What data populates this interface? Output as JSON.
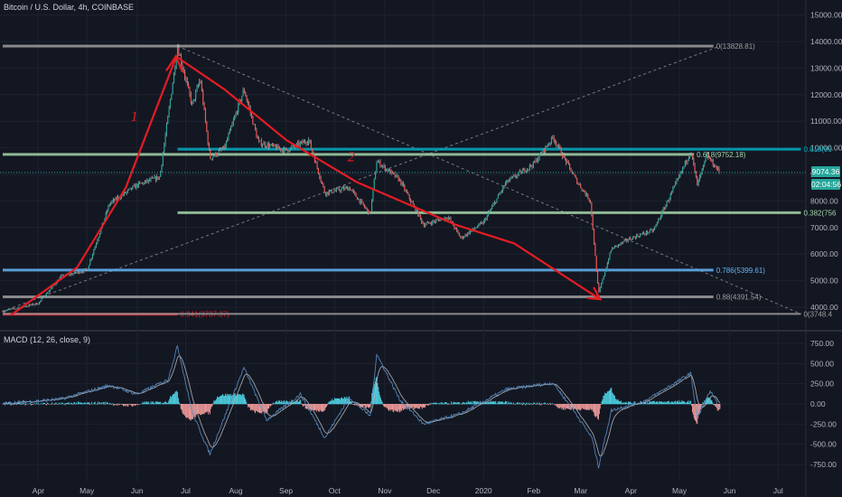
{
  "header": {
    "title": "Bitcoin / U.S. Dollar, 4h, COINBASE"
  },
  "macd_panel": {
    "title": "MACD (12, 26, close, 9)"
  },
  "price_tags": {
    "last_price": "9074.36",
    "countdown": "02:04:56",
    "last_color": "#26a69a"
  },
  "colors": {
    "background": "#131722",
    "grid": "#1e2230",
    "up": "#26a69a",
    "down": "#ef5350",
    "annotation": "#e51c23",
    "macd_line": "#26a69a",
    "signal_line": "#ef5350"
  },
  "chart_data": [
    {
      "type": "line",
      "title": "Bitcoin / U.S. Dollar, 4h, COINBASE",
      "x_tick_labels": [
        "Apr",
        "May",
        "Jun",
        "Jul",
        "Aug",
        "Sep",
        "Oct",
        "Nov",
        "Dec",
        "2020",
        "Feb",
        "Mar",
        "Apr",
        "May",
        "Jun",
        "Jul"
      ],
      "y_tick_labels": [
        "15000.00",
        "14000.00",
        "13000.00",
        "12000.00",
        "11000.00",
        "10000.00",
        "9000.00",
        "8000.00",
        "7000.00",
        "6000.00",
        "5000.00",
        "4000.00"
      ],
      "ylim": [
        3500,
        15200
      ],
      "price_series_approx": [
        {
          "x": "2019-03-10",
          "y": 3850
        },
        {
          "x": "2019-04-01",
          "y": 4150
        },
        {
          "x": "2019-04-15",
          "y": 5150
        },
        {
          "x": "2019-05-01",
          "y": 5400
        },
        {
          "x": "2019-05-15",
          "y": 7900
        },
        {
          "x": "2019-06-01",
          "y": 8600
        },
        {
          "x": "2019-06-15",
          "y": 8900
        },
        {
          "x": "2019-06-26",
          "y": 13800
        },
        {
          "x": "2019-07-05",
          "y": 11600
        },
        {
          "x": "2019-07-10",
          "y": 12600
        },
        {
          "x": "2019-07-16",
          "y": 9600
        },
        {
          "x": "2019-07-25",
          "y": 10000
        },
        {
          "x": "2019-08-06",
          "y": 12200
        },
        {
          "x": "2019-08-15",
          "y": 10200
        },
        {
          "x": "2019-09-01",
          "y": 9900
        },
        {
          "x": "2019-09-15",
          "y": 10300
        },
        {
          "x": "2019-09-25",
          "y": 8300
        },
        {
          "x": "2019-10-10",
          "y": 8500
        },
        {
          "x": "2019-10-23",
          "y": 7500
        },
        {
          "x": "2019-10-27",
          "y": 9500
        },
        {
          "x": "2019-11-10",
          "y": 8800
        },
        {
          "x": "2019-11-25",
          "y": 7100
        },
        {
          "x": "2019-12-10",
          "y": 7400
        },
        {
          "x": "2019-12-18",
          "y": 6600
        },
        {
          "x": "2020-01-01",
          "y": 7200
        },
        {
          "x": "2020-01-15",
          "y": 8700
        },
        {
          "x": "2020-02-01",
          "y": 9400
        },
        {
          "x": "2020-02-13",
          "y": 10400
        },
        {
          "x": "2020-02-27",
          "y": 8800
        },
        {
          "x": "2020-03-07",
          "y": 8000
        },
        {
          "x": "2020-03-12",
          "y": 4500
        },
        {
          "x": "2020-03-20",
          "y": 6200
        },
        {
          "x": "2020-04-01",
          "y": 6600
        },
        {
          "x": "2020-04-15",
          "y": 6900
        },
        {
          "x": "2020-04-30",
          "y": 8800
        },
        {
          "x": "2020-05-08",
          "y": 9900
        },
        {
          "x": "2020-05-12",
          "y": 8600
        },
        {
          "x": "2020-05-18",
          "y": 9700
        },
        {
          "x": "2020-05-26",
          "y": 9074
        }
      ],
      "horizontal_levels": [
        {
          "label": "0(13828.81)",
          "value": 13828.81,
          "color": "#9e9e9e"
        },
        {
          "label": "0.618(99",
          "value": 9950,
          "color": "#00acc1"
        },
        {
          "label": "0.618(9752.18)",
          "value": 9752.18,
          "color": "#a5d6a7"
        },
        {
          "label": "0.382(756",
          "value": 7560,
          "color": "#a5d6a7"
        },
        {
          "label": "0.786(5399.61)",
          "value": 5399.61,
          "color": "#64b5f6"
        },
        {
          "label": "0.88(4391.54)",
          "value": 4391.54,
          "color": "#9e9e9e"
        },
        {
          "label": "0.941(3737.37)",
          "value": 3737.37,
          "color": "#e51c23"
        },
        {
          "label": "0(3748.4",
          "value": 3748.4,
          "color": "#9e9e9e"
        }
      ],
      "annotations": [
        "1",
        "2"
      ]
    },
    {
      "type": "line",
      "title": "MACD (12, 26, close, 9)",
      "y_tick_labels": [
        "750.00",
        "500.00",
        "250.00",
        "0.00",
        "-250.00",
        "-500.00",
        "-750.00"
      ],
      "ylim": [
        -850,
        850
      ],
      "series": [
        {
          "values_approx": [
            {
              "x": "2019-03-10",
              "y": 5
            },
            {
              "x": "2019-04-15",
              "y": 60
            },
            {
              "x": "2019-05-15",
              "y": 230
            },
            {
              "x": "2019-06-01",
              "y": 120
            },
            {
              "x": "2019-06-20",
              "y": 300
            },
            {
              "x": "2019-06-26",
              "y": 720
            },
            {
              "x": "2019-07-05",
              "y": -100
            },
            {
              "x": "2019-07-16",
              "y": -620
            },
            {
              "x": "2019-08-06",
              "y": 450
            },
            {
              "x": "2019-08-20",
              "y": -200
            },
            {
              "x": "2019-09-10",
              "y": 120
            },
            {
              "x": "2019-09-25",
              "y": -420
            },
            {
              "x": "2019-10-10",
              "y": 80
            },
            {
              "x": "2019-10-23",
              "y": -150
            },
            {
              "x": "2019-10-27",
              "y": 620
            },
            {
              "x": "2019-11-10",
              "y": 60
            },
            {
              "x": "2019-11-25",
              "y": -250
            },
            {
              "x": "2019-12-18",
              "y": -120
            },
            {
              "x": "2020-01-15",
              "y": 180
            },
            {
              "x": "2020-02-13",
              "y": 260
            },
            {
              "x": "2020-02-27",
              "y": -120
            },
            {
              "x": "2020-03-08",
              "y": -420
            },
            {
              "x": "2020-03-12",
              "y": -780
            },
            {
              "x": "2020-03-20",
              "y": -80
            },
            {
              "x": "2020-04-10",
              "y": 40
            },
            {
              "x": "2020-04-30",
              "y": 280
            },
            {
              "x": "2020-05-08",
              "y": 380
            },
            {
              "x": "2020-05-12",
              "y": -180
            },
            {
              "x": "2020-05-20",
              "y": 160
            },
            {
              "x": "2020-05-26",
              "y": -60
            }
          ]
        }
      ]
    }
  ]
}
